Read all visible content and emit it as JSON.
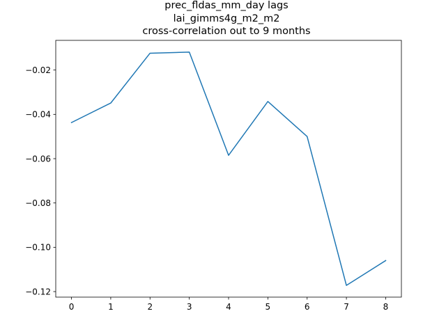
{
  "chart_data": {
    "type": "line",
    "title_lines": [
      "prec_fldas_mm_day lags",
      "lai_gimms4g_m2_m2",
      "cross-correlation out to 9 months"
    ],
    "xlabel": "",
    "ylabel": "",
    "x": [
      0,
      1,
      2,
      3,
      4,
      5,
      6,
      7,
      8
    ],
    "series": [
      {
        "values": [
          -0.0437,
          -0.0349,
          -0.0124,
          -0.0119,
          -0.0585,
          -0.0342,
          -0.05,
          -0.1172,
          -0.106
        ],
        "color": "#1f77b4"
      }
    ],
    "xlim": [
      -0.4,
      8.4
    ],
    "ylim": [
      -0.1225,
      -0.0066
    ],
    "x_ticks": [
      "0",
      "1",
      "2",
      "3",
      "4",
      "5",
      "6",
      "7",
      "8"
    ],
    "y_ticks": [
      "−0.02",
      "−0.04",
      "−0.06",
      "−0.08",
      "−0.10",
      "−0.12"
    ],
    "grid": false,
    "legend": "none"
  }
}
